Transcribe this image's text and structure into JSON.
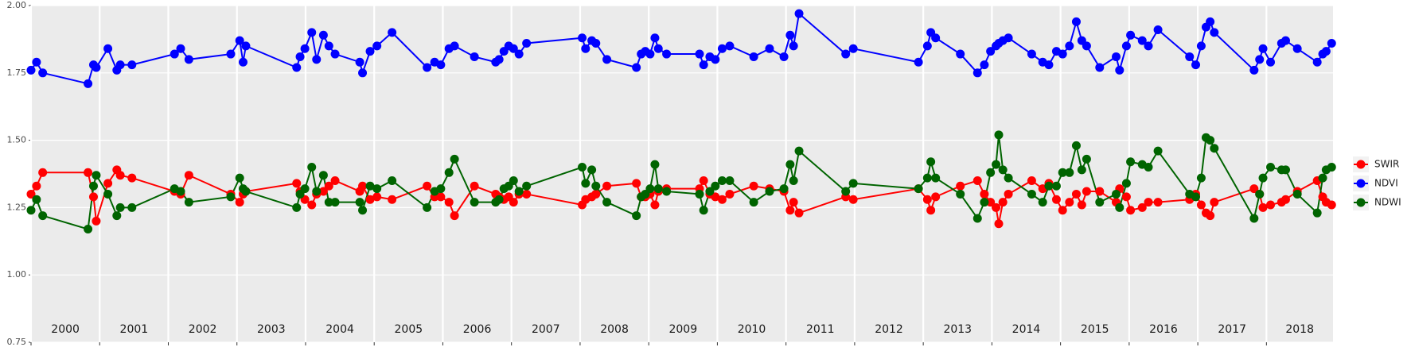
{
  "chart_data": {
    "type": "line",
    "x": [
      2000.0,
      2000.08,
      2000.17,
      2000.83,
      2000.91,
      2000.95,
      2001.12,
      2001.25,
      2001.3,
      2001.47,
      2002.09,
      2002.18,
      2002.3,
      2002.91,
      2003.04,
      2003.09,
      2003.13,
      2003.87,
      2003.92,
      2003.99,
      2004.09,
      2004.16,
      2004.26,
      2004.34,
      2004.43,
      2004.79,
      2004.83,
      2004.94,
      2005.04,
      2005.26,
      2005.77,
      2005.88,
      2005.97,
      2006.09,
      2006.17,
      2006.46,
      2006.77,
      2006.82,
      2006.89,
      2006.96,
      2007.03,
      2007.11,
      2007.22,
      2008.03,
      2008.08,
      2008.17,
      2008.23,
      2008.39,
      2008.82,
      2008.89,
      2008.95,
      2009.02,
      2009.09,
      2009.14,
      2009.26,
      2009.74,
      2009.8,
      2009.89,
      2009.97,
      2010.07,
      2010.18,
      2010.53,
      2010.76,
      2010.97,
      2011.06,
      2011.11,
      2011.19,
      2011.87,
      2011.98,
      2012.93,
      2013.06,
      2013.11,
      2013.18,
      2013.54,
      2013.79,
      2013.89,
      2013.98,
      2014.06,
      2014.1,
      2014.16,
      2014.24,
      2014.58,
      2014.74,
      2014.83,
      2014.94,
      2015.03,
      2015.13,
      2015.23,
      2015.31,
      2015.38,
      2015.57,
      2015.81,
      2015.86,
      2015.96,
      2016.02,
      2016.19,
      2016.28,
      2016.42,
      2016.88,
      2016.97,
      2017.05,
      2017.12,
      2017.18,
      2017.24,
      2017.82,
      2017.9,
      2017.95,
      2018.06,
      2018.22,
      2018.28,
      2018.45,
      2018.74,
      2018.82,
      2018.87,
      2018.95
    ],
    "series": [
      {
        "name": "SWIR",
        "color": "#ff0000",
        "values": [
          1.3,
          1.33,
          1.38,
          1.38,
          1.29,
          1.2,
          1.34,
          1.39,
          1.37,
          1.36,
          1.31,
          1.3,
          1.37,
          1.3,
          1.27,
          1.3,
          1.31,
          1.34,
          1.31,
          1.28,
          1.26,
          1.3,
          1.31,
          1.33,
          1.35,
          1.31,
          1.33,
          1.28,
          1.29,
          1.28,
          1.33,
          1.29,
          1.29,
          1.27,
          1.22,
          1.33,
          1.3,
          1.29,
          1.28,
          1.29,
          1.27,
          1.3,
          1.3,
          1.26,
          1.28,
          1.29,
          1.3,
          1.33,
          1.34,
          1.29,
          1.29,
          1.3,
          1.26,
          1.31,
          1.32,
          1.32,
          1.35,
          1.3,
          1.29,
          1.28,
          1.3,
          1.33,
          1.32,
          1.31,
          1.24,
          1.27,
          1.23,
          1.29,
          1.28,
          1.32,
          1.28,
          1.24,
          1.29,
          1.33,
          1.35,
          1.3,
          1.27,
          1.25,
          1.19,
          1.27,
          1.3,
          1.35,
          1.32,
          1.34,
          1.28,
          1.24,
          1.27,
          1.3,
          1.26,
          1.31,
          1.31,
          1.27,
          1.32,
          1.29,
          1.24,
          1.25,
          1.27,
          1.27,
          1.28,
          1.3,
          1.26,
          1.23,
          1.22,
          1.27,
          1.32,
          1.3,
          1.25,
          1.26,
          1.27,
          1.28,
          1.31,
          1.35,
          1.29,
          1.27,
          1.26
        ]
      },
      {
        "name": "NDVI",
        "color": "#0000ff",
        "values": [
          1.76,
          1.79,
          1.75,
          1.71,
          1.78,
          1.77,
          1.84,
          1.76,
          1.78,
          1.78,
          1.82,
          1.84,
          1.8,
          1.82,
          1.87,
          1.79,
          1.85,
          1.77,
          1.81,
          1.84,
          1.9,
          1.8,
          1.89,
          1.85,
          1.82,
          1.79,
          1.75,
          1.83,
          1.85,
          1.9,
          1.77,
          1.79,
          1.78,
          1.84,
          1.85,
          1.81,
          1.79,
          1.8,
          1.83,
          1.85,
          1.84,
          1.82,
          1.86,
          1.88,
          1.84,
          1.87,
          1.86,
          1.8,
          1.77,
          1.82,
          1.83,
          1.82,
          1.88,
          1.84,
          1.82,
          1.82,
          1.78,
          1.81,
          1.8,
          1.84,
          1.85,
          1.81,
          1.84,
          1.81,
          1.89,
          1.85,
          1.97,
          1.82,
          1.84,
          1.79,
          1.85,
          1.9,
          1.88,
          1.82,
          1.75,
          1.78,
          1.83,
          1.85,
          1.86,
          1.87,
          1.88,
          1.82,
          1.79,
          1.78,
          1.83,
          1.82,
          1.85,
          1.94,
          1.87,
          1.85,
          1.77,
          1.81,
          1.76,
          1.85,
          1.89,
          1.87,
          1.85,
          1.91,
          1.81,
          1.78,
          1.85,
          1.92,
          1.94,
          1.9,
          1.76,
          1.8,
          1.84,
          1.79,
          1.86,
          1.87,
          1.84,
          1.79,
          1.82,
          1.83,
          1.86
        ]
      },
      {
        "name": "NDWI",
        "color": "#006400",
        "values": [
          1.24,
          1.28,
          1.22,
          1.17,
          1.33,
          1.37,
          1.3,
          1.22,
          1.25,
          1.25,
          1.32,
          1.31,
          1.27,
          1.29,
          1.36,
          1.32,
          1.31,
          1.25,
          1.3,
          1.32,
          1.4,
          1.31,
          1.37,
          1.27,
          1.27,
          1.27,
          1.24,
          1.33,
          1.32,
          1.35,
          1.25,
          1.31,
          1.32,
          1.38,
          1.43,
          1.27,
          1.27,
          1.28,
          1.32,
          1.33,
          1.35,
          1.31,
          1.33,
          1.4,
          1.34,
          1.39,
          1.33,
          1.27,
          1.22,
          1.29,
          1.3,
          1.32,
          1.41,
          1.32,
          1.31,
          1.3,
          1.24,
          1.31,
          1.33,
          1.35,
          1.35,
          1.27,
          1.31,
          1.32,
          1.41,
          1.35,
          1.46,
          1.31,
          1.34,
          1.32,
          1.36,
          1.42,
          1.36,
          1.3,
          1.21,
          1.27,
          1.38,
          1.41,
          1.52,
          1.39,
          1.36,
          1.3,
          1.27,
          1.33,
          1.33,
          1.38,
          1.38,
          1.48,
          1.39,
          1.43,
          1.27,
          1.3,
          1.25,
          1.34,
          1.42,
          1.41,
          1.4,
          1.46,
          1.3,
          1.29,
          1.36,
          1.51,
          1.5,
          1.47,
          1.21,
          1.3,
          1.36,
          1.4,
          1.39,
          1.39,
          1.3,
          1.23,
          1.36,
          1.39,
          1.4
        ]
      }
    ],
    "year_labels": [
      "2000",
      "2001",
      "2002",
      "2003",
      "2004",
      "2005",
      "2006",
      "2007",
      "2008",
      "2009",
      "2010",
      "2011",
      "2012",
      "2013",
      "2014",
      "2015",
      "2016",
      "2017",
      "2018"
    ],
    "xlim": [
      2000,
      2018.97
    ],
    "xticks": [
      2000,
      2001,
      2002,
      2003,
      2004,
      2005,
      2006,
      2007,
      2008,
      2009,
      2010,
      2011,
      2012,
      2013,
      2014,
      2015,
      2016,
      2017,
      2018
    ],
    "ylim": [
      0.75,
      2.0
    ],
    "yticks": [
      {
        "value": 0.75,
        "label": "0.75"
      },
      {
        "value": 1.0,
        "label": "1.00"
      },
      {
        "value": 1.25,
        "label": "1.25"
      },
      {
        "value": 1.5,
        "label": "1.50"
      },
      {
        "value": 1.75,
        "label": "1.75"
      },
      {
        "value": 2.0,
        "label": "2.00"
      }
    ],
    "grid": true,
    "legend": "right"
  }
}
